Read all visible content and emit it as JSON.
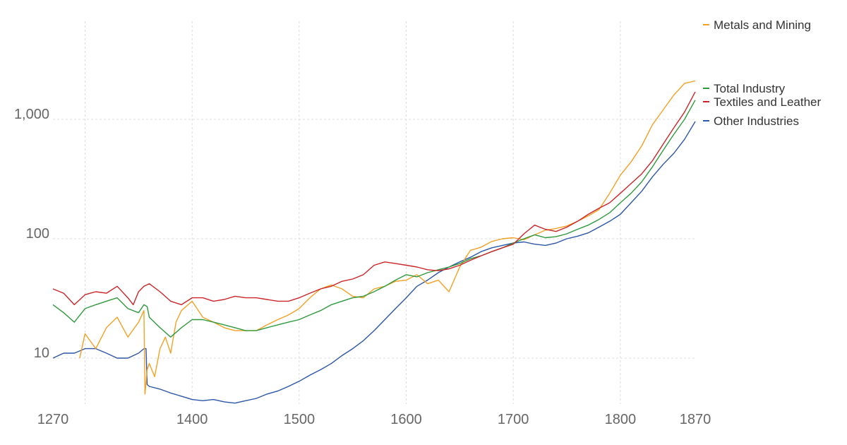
{
  "chart_data": {
    "type": "line",
    "title": "",
    "xlabel": "",
    "ylabel": "",
    "y_scale": "log",
    "xlim": [
      1270,
      1870
    ],
    "ylim": [
      4,
      2200
    ],
    "grid": true,
    "legend_placement": "right",
    "x_ticks": [
      {
        "value": 1270,
        "label": "1270"
      },
      {
        "value": 1300,
        "label": ""
      },
      {
        "value": 1400,
        "label": "1400"
      },
      {
        "value": 1500,
        "label": "1500"
      },
      {
        "value": 1600,
        "label": "1600"
      },
      {
        "value": 1700,
        "label": "1700"
      },
      {
        "value": 1800,
        "label": "1800"
      },
      {
        "value": 1870,
        "label": "1870"
      }
    ],
    "y_ticks": [
      {
        "value": 10,
        "label": "10"
      },
      {
        "value": 100,
        "label": "100"
      },
      {
        "value": 1000,
        "label": "1,000"
      }
    ],
    "series": [
      {
        "name": "Other Industries",
        "color": "#2c56a8",
        "x": [
          1270,
          1280,
          1290,
          1300,
          1310,
          1320,
          1330,
          1340,
          1350,
          1355,
          1357,
          1358,
          1360,
          1370,
          1380,
          1390,
          1400,
          1410,
          1420,
          1430,
          1440,
          1450,
          1460,
          1470,
          1480,
          1490,
          1500,
          1510,
          1520,
          1530,
          1540,
          1550,
          1560,
          1570,
          1580,
          1590,
          1600,
          1610,
          1620,
          1630,
          1640,
          1650,
          1660,
          1670,
          1680,
          1690,
          1700,
          1710,
          1720,
          1730,
          1740,
          1750,
          1760,
          1770,
          1780,
          1790,
          1800,
          1810,
          1820,
          1830,
          1840,
          1850,
          1860,
          1870
        ],
        "y": [
          10,
          11,
          11,
          12,
          12,
          11,
          10,
          10,
          11,
          12,
          12,
          6,
          5.8,
          5.5,
          5.1,
          4.8,
          4.5,
          4.4,
          4.5,
          4.3,
          4.2,
          4.4,
          4.6,
          5.0,
          5.3,
          5.8,
          6.4,
          7.2,
          8.0,
          9.0,
          10.5,
          12,
          14,
          17,
          21,
          26,
          32,
          40,
          45,
          52,
          58,
          64,
          70,
          78,
          84,
          88,
          92,
          94,
          90,
          88,
          92,
          100,
          105,
          112,
          125,
          140,
          160,
          200,
          250,
          330,
          420,
          520,
          680,
          960
        ]
      },
      {
        "name": "Metals and Mining",
        "color": "#f2a125",
        "x": [
          1270,
          1280,
          1290,
          1295,
          1300,
          1310,
          1320,
          1330,
          1340,
          1350,
          1355,
          1356,
          1358,
          1360,
          1365,
          1370,
          1375,
          1380,
          1385,
          1390,
          1400,
          1410,
          1420,
          1430,
          1440,
          1450,
          1460,
          1470,
          1480,
          1490,
          1500,
          1510,
          1520,
          1530,
          1540,
          1550,
          1560,
          1570,
          1580,
          1590,
          1600,
          1610,
          1620,
          1630,
          1640,
          1650,
          1660,
          1670,
          1680,
          1690,
          1700,
          1710,
          1720,
          1730,
          1740,
          1750,
          1760,
          1770,
          1780,
          1790,
          1800,
          1810,
          1820,
          1830,
          1840,
          1850,
          1860,
          1870
        ],
        "y": [
          null,
          null,
          null,
          10,
          16,
          12,
          18,
          22,
          15,
          20,
          25,
          5,
          8,
          9,
          7,
          12,
          15,
          11,
          20,
          25,
          30,
          22,
          20,
          18,
          17,
          17,
          17,
          19,
          21,
          23,
          26,
          32,
          38,
          41,
          38,
          33,
          32,
          38,
          40,
          44,
          45,
          50,
          42,
          45,
          36,
          58,
          80,
          85,
          95,
          100,
          102,
          98,
          108,
          118,
          122,
          128,
          140,
          155,
          175,
          240,
          340,
          440,
          600,
          900,
          1200,
          1600,
          2000,
          2100
        ]
      },
      {
        "name": "Total Industry",
        "color": "#2e9a3c",
        "x": [
          1270,
          1280,
          1290,
          1300,
          1310,
          1320,
          1330,
          1340,
          1350,
          1355,
          1358,
          1360,
          1370,
          1380,
          1390,
          1400,
          1410,
          1420,
          1430,
          1440,
          1450,
          1460,
          1470,
          1480,
          1490,
          1500,
          1510,
          1520,
          1530,
          1540,
          1550,
          1560,
          1570,
          1580,
          1590,
          1600,
          1610,
          1620,
          1630,
          1640,
          1650,
          1660,
          1670,
          1680,
          1690,
          1700,
          1710,
          1720,
          1730,
          1740,
          1750,
          1760,
          1770,
          1780,
          1790,
          1800,
          1810,
          1820,
          1830,
          1840,
          1850,
          1860,
          1870
        ],
        "y": [
          28,
          24,
          20,
          26,
          28,
          30,
          32,
          26,
          24,
          28,
          27,
          22,
          18,
          15,
          18,
          21,
          21,
          20,
          19,
          18,
          17,
          17,
          18,
          19,
          20,
          21,
          23,
          25,
          28,
          30,
          32,
          33,
          36,
          40,
          45,
          50,
          48,
          52,
          55,
          58,
          62,
          68,
          72,
          78,
          84,
          92,
          100,
          108,
          102,
          104,
          110,
          120,
          130,
          145,
          165,
          200,
          240,
          300,
          400,
          550,
          750,
          1000,
          1450
        ]
      },
      {
        "name": "Textiles and Leather",
        "color": "#cc2529",
        "x": [
          1270,
          1280,
          1290,
          1300,
          1310,
          1320,
          1330,
          1340,
          1345,
          1350,
          1355,
          1360,
          1370,
          1380,
          1390,
          1400,
          1410,
          1420,
          1430,
          1440,
          1450,
          1460,
          1470,
          1480,
          1490,
          1500,
          1510,
          1520,
          1530,
          1540,
          1550,
          1560,
          1570,
          1580,
          1590,
          1600,
          1610,
          1620,
          1630,
          1640,
          1650,
          1660,
          1670,
          1680,
          1690,
          1700,
          1710,
          1720,
          1730,
          1740,
          1750,
          1760,
          1770,
          1780,
          1790,
          1800,
          1810,
          1820,
          1830,
          1840,
          1850,
          1860,
          1870
        ],
        "y": [
          38,
          35,
          28,
          34,
          36,
          35,
          40,
          32,
          28,
          36,
          40,
          42,
          36,
          30,
          28,
          32,
          32,
          30,
          31,
          33,
          32,
          32,
          31,
          30,
          30,
          32,
          35,
          38,
          40,
          44,
          46,
          50,
          60,
          64,
          62,
          60,
          58,
          55,
          54,
          56,
          60,
          66,
          72,
          78,
          84,
          90,
          110,
          130,
          120,
          115,
          125,
          140,
          160,
          180,
          200,
          240,
          290,
          350,
          450,
          620,
          850,
          1150,
          1700
        ]
      }
    ]
  },
  "legend": [
    {
      "label": "Metals and Mining",
      "color": "#f2a125"
    },
    {
      "label": "Total Industry",
      "color": "#2e9a3c"
    },
    {
      "label": "Textiles and Leather",
      "color": "#cc2529"
    },
    {
      "label": "Other Industries",
      "color": "#2c56a8"
    }
  ]
}
